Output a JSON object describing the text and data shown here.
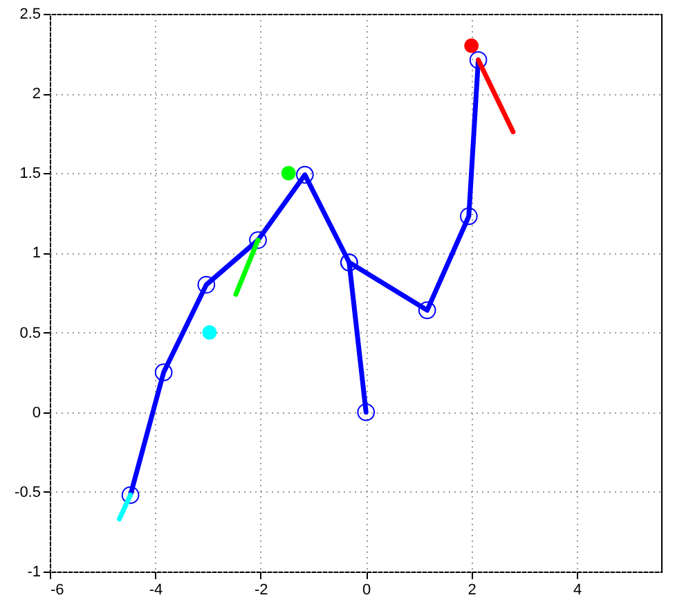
{
  "chart_data": {
    "type": "line",
    "xlim": [
      -6,
      5.6
    ],
    "xticks": [
      -6,
      -4,
      -2,
      0,
      2,
      4
    ],
    "ylim": [
      -1,
      2.5
    ],
    "yticks": [
      -1,
      -0.5,
      0,
      0.5,
      1,
      1.5,
      2,
      2.5
    ],
    "grid": true,
    "series": [
      {
        "marker": "circle",
        "line_style": "solid",
        "color": "#0000ff",
        "x": [
          0,
          -0.32,
          -1.16,
          -2.05,
          -3.03,
          -3.84,
          -4.47
        ],
        "values": [
          0,
          0.94,
          1.49,
          1.08,
          0.8,
          0.25,
          -0.52
        ]
      },
      {
        "marker": "circle",
        "line_style": "solid",
        "color": "#0000ff",
        "x": [
          -0.32,
          1.16,
          1.95,
          2.13
        ],
        "values": [
          0.94,
          0.64,
          1.23,
          2.21
        ]
      },
      {
        "marker": "none",
        "line_style": "solid",
        "color": "#00ffff",
        "x": [
          -4.47,
          -4.68
        ],
        "values": [
          -0.52,
          -0.67
        ]
      },
      {
        "marker": "none",
        "line_style": "solid",
        "color": "#00ff00",
        "x": [
          -2.05,
          -2.47
        ],
        "values": [
          1.08,
          0.74
        ]
      },
      {
        "marker": "none",
        "line_style": "solid",
        "color": "#ff0000",
        "x": [
          2.13,
          2.79
        ],
        "values": [
          2.21,
          1.76
        ]
      },
      {
        "type": "scatter",
        "marker": "circle",
        "color": "#00ff00",
        "x": [
          -1.47
        ],
        "values": [
          1.5
        ]
      },
      {
        "type": "scatter",
        "marker": "circle",
        "color": "#00ffff",
        "x": [
          -2.97
        ],
        "values": [
          0.5
        ]
      },
      {
        "type": "scatter",
        "marker": "circle",
        "color": "#ff0000",
        "x": [
          2.0
        ],
        "values": [
          2.3
        ]
      }
    ]
  }
}
